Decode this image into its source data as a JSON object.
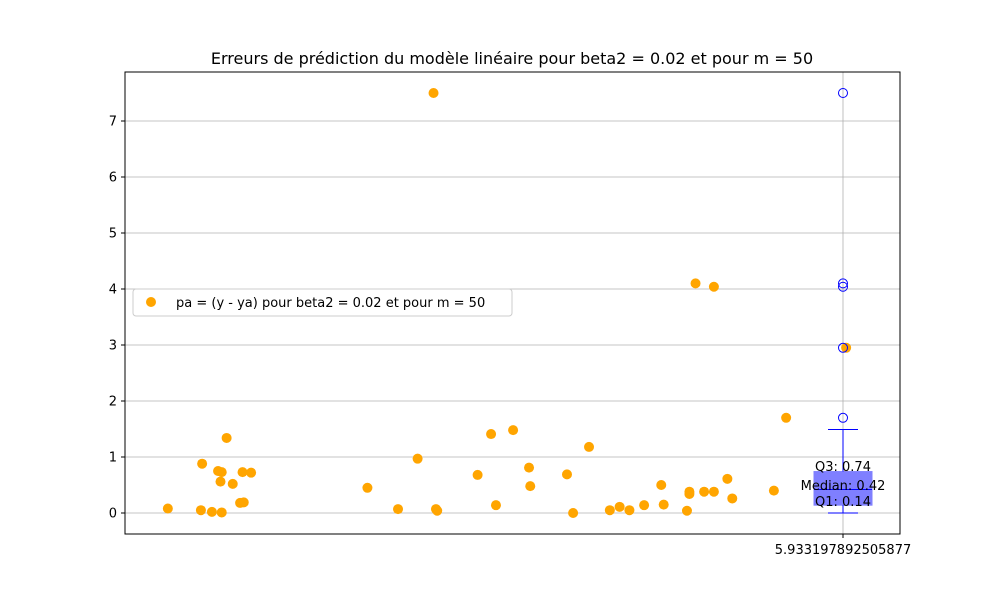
{
  "chart_data": {
    "type": "scatter",
    "title": "Erreurs de prédiction du modèle linéaire pour beta2 = 0.02 et pour m = 50",
    "xlabel": "",
    "ylabel": "",
    "ylim": [
      -0.375,
      7.875
    ],
    "y_ticks": [
      0,
      1,
      2,
      3,
      4,
      5,
      6,
      7
    ],
    "x_tick_label": "5.933197892505877",
    "grid": true,
    "legend_position": "center-left",
    "series": [
      {
        "name": "pa = (y - ya) pour beta2 = 0.02 et pour m = 50",
        "color": "#ffa500",
        "points": [
          [
            0.35,
            0.08
          ],
          [
            0.62,
            0.05
          ],
          [
            0.63,
            0.88
          ],
          [
            0.71,
            0.02
          ],
          [
            0.76,
            0.75
          ],
          [
            0.78,
            0.56
          ],
          [
            0.79,
            0.73
          ],
          [
            0.79,
            0.01
          ],
          [
            0.83,
            1.34
          ],
          [
            0.88,
            0.52
          ],
          [
            0.94,
            0.18
          ],
          [
            0.96,
            0.73
          ],
          [
            0.97,
            0.19
          ],
          [
            1.03,
            0.72
          ],
          [
            1.98,
            0.45
          ],
          [
            2.23,
            0.07
          ],
          [
            2.39,
            0.97
          ],
          [
            2.52,
            7.5
          ],
          [
            2.54,
            0.07
          ],
          [
            2.55,
            0.04
          ],
          [
            2.88,
            0.68
          ],
          [
            2.99,
            1.41
          ],
          [
            3.03,
            0.14
          ],
          [
            3.17,
            1.48
          ],
          [
            3.3,
            0.81
          ],
          [
            3.31,
            0.48
          ],
          [
            3.61,
            0.69
          ],
          [
            3.66,
            0.0
          ],
          [
            3.79,
            1.18
          ],
          [
            3.96,
            0.05
          ],
          [
            4.04,
            0.11
          ],
          [
            4.12,
            0.05
          ],
          [
            4.24,
            0.14
          ],
          [
            4.38,
            0.5
          ],
          [
            4.4,
            0.15
          ],
          [
            4.59,
            0.04
          ],
          [
            4.61,
            0.38
          ],
          [
            4.61,
            0.34
          ],
          [
            4.66,
            4.1
          ],
          [
            4.73,
            0.38
          ],
          [
            4.81,
            0.38
          ],
          [
            4.81,
            4.04
          ],
          [
            4.92,
            0.61
          ],
          [
            4.96,
            0.26
          ],
          [
            5.3,
            0.4
          ],
          [
            5.4,
            1.7
          ],
          [
            5.7,
            0.4
          ],
          [
            5.89,
            2.95
          ],
          [
            5.89,
            0.67
          ]
        ]
      }
    ],
    "boxplot": {
      "color": "#0000ff",
      "box_fill": "#7f7fff",
      "q1": 0.14,
      "median": 0.42,
      "q3": 0.74,
      "whisker_low": 0.0,
      "whisker_high": 1.49,
      "outliers": [
        7.5,
        4.1,
        4.04,
        2.95,
        1.7
      ]
    },
    "annotations": {
      "q3": "Q3: 0.74",
      "median": "Median: 0.42",
      "q1": "Q1: 0.14"
    }
  }
}
